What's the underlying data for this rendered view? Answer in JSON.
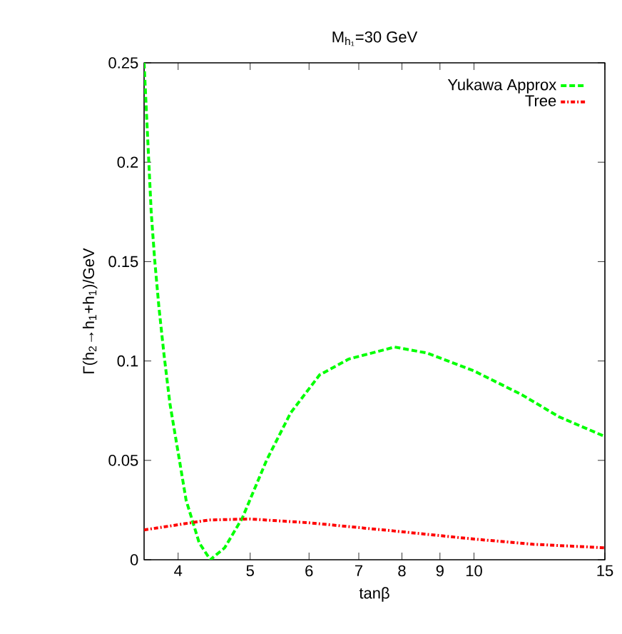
{
  "chart_data": {
    "type": "line",
    "title": "M$_{h₁}$=30 GeV",
    "xlabel": "tanβ",
    "ylabel": "Γ(h$_{2}$→h$_{1}$+h$_{1}$)/GeV",
    "log": "x",
    "xlim": [
      3.6,
      15
    ],
    "ylim": [
      0,
      0.25
    ],
    "xticks": [
      4,
      5,
      6,
      7,
      8,
      9,
      10,
      15
    ],
    "yticks": [
      0,
      0.05,
      0.1,
      0.15,
      0.2,
      0.25
    ],
    "grid": false,
    "legend": "top right",
    "marker": "none",
    "series": [
      {
        "name": "Yukawa Approx",
        "color": "#00ff00",
        "line_style": "dashed",
        "x": [
          3.6,
          3.68,
          3.72,
          3.77,
          3.83,
          3.9,
          4.0,
          4.1,
          4.27,
          4.42,
          4.62,
          4.88,
          5.26,
          5.67,
          6.2,
          6.79,
          7.82,
          8.65,
          10.0,
          11.6,
          13.0,
          15
        ],
        "values": [
          0.25,
          0.175,
          0.151,
          0.127,
          0.103,
          0.0785,
          0.054,
          0.03,
          0.0085,
          0,
          0.006,
          0.021,
          0.05,
          0.074,
          0.093,
          0.101,
          0.107,
          0.104,
          0.095,
          0.083,
          0.072,
          0.062
        ]
      },
      {
        "name": "Tree",
        "color": "#ff0000",
        "line_style": "dashdot",
        "x": [
          3.6,
          4.4,
          5.0,
          6.0,
          7.8,
          10,
          12,
          15
        ],
        "values": [
          0.015,
          0.02,
          0.0205,
          0.0186,
          0.0145,
          0.0104,
          0.0078,
          0.006
        ]
      }
    ]
  }
}
